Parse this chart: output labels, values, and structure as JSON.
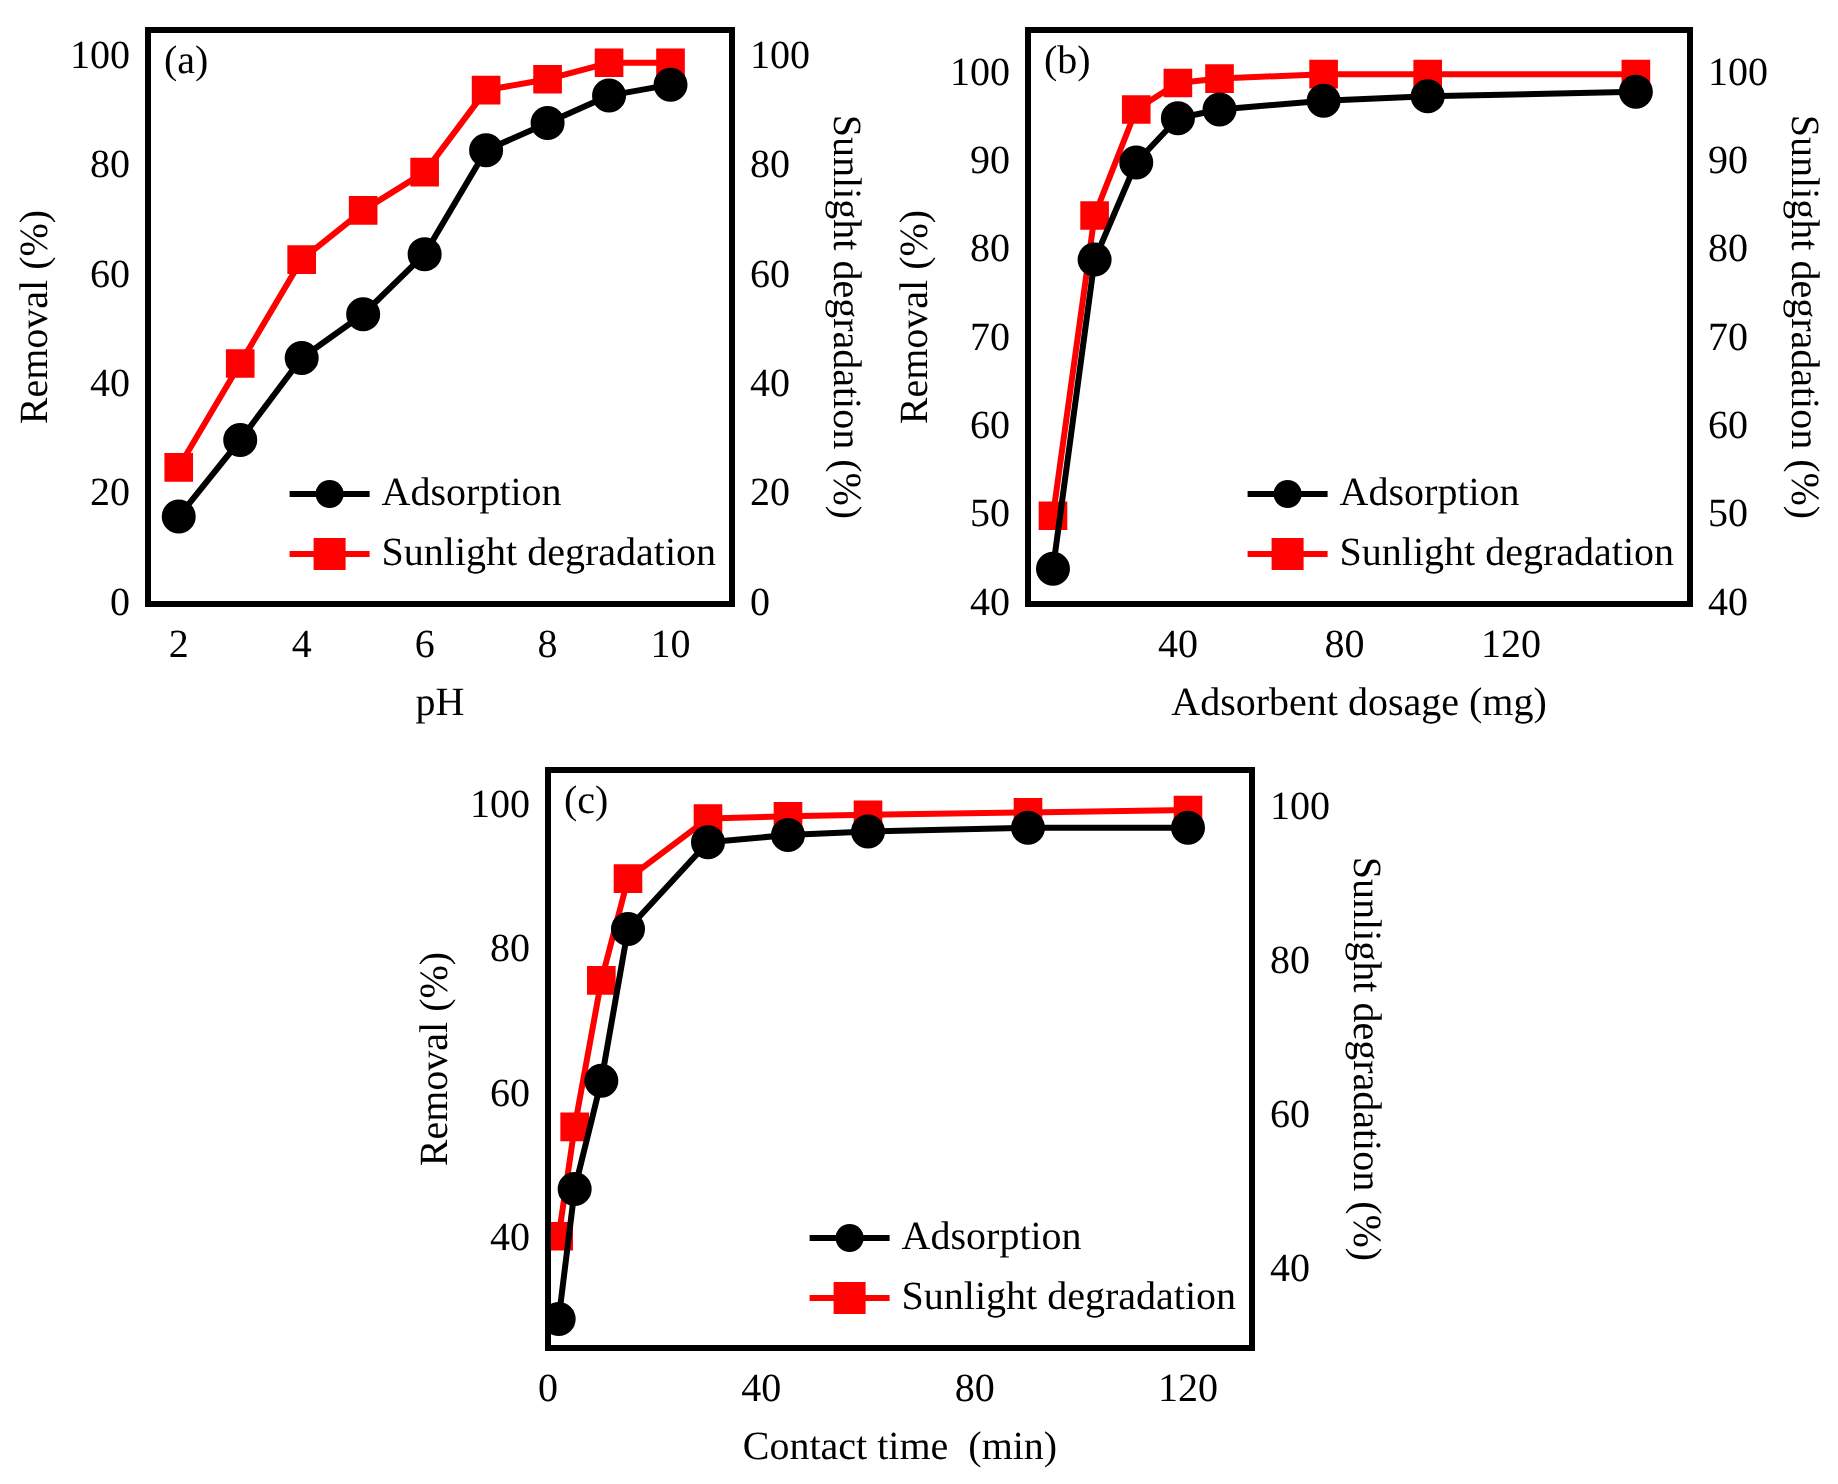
{
  "chart_data": [
    {
      "type": "line",
      "annotations": [
        "(a)"
      ],
      "xlabel": "pH",
      "ylabel": "Removal (%)",
      "y2label": "Sunlight degradation (%)",
      "x": [
        2,
        3,
        4,
        5,
        6,
        7,
        8,
        9,
        10
      ],
      "xlim": [
        1.5,
        11
      ],
      "xticks": [
        2,
        4,
        6,
        8,
        10
      ],
      "ylim": [
        0,
        105
      ],
      "yticks": [
        0,
        20,
        40,
        60,
        80,
        100
      ],
      "y2lim": [
        0,
        105
      ],
      "y2ticks": [
        0,
        20,
        40,
        60,
        80,
        100
      ],
      "legend": "bottom right",
      "grid": false,
      "line_style": "solid",
      "series": [
        {
          "name": "Adsorption",
          "color": "#000000",
          "marker": "circle",
          "values": [
            16,
            30,
            45,
            53,
            64,
            83,
            88,
            93,
            95
          ]
        },
        {
          "name": "Sunlight degradation",
          "color": "#ff0000",
          "marker": "square",
          "axis": "y2",
          "values": [
            25,
            44,
            63,
            72,
            79,
            94,
            96,
            99,
            99
          ]
        }
      ]
    },
    {
      "type": "line",
      "annotations": [
        "(b)"
      ],
      "xlabel": "Adsorbent dosage (mg)",
      "ylabel": "Removal (%)",
      "y2label": "Sunlight degradation (%)",
      "x": [
        10,
        20,
        30,
        40,
        50,
        75,
        100,
        150
      ],
      "xlim": [
        4,
        163
      ],
      "xticks": [
        40,
        80,
        120
      ],
      "ylim": [
        40,
        105
      ],
      "yticks": [
        40,
        50,
        60,
        70,
        80,
        90,
        100
      ],
      "y2lim": [
        40,
        105
      ],
      "y2ticks": [
        40,
        50,
        60,
        70,
        80,
        90,
        100
      ],
      "legend": "bottom right",
      "grid": false,
      "line_style": "solid",
      "series": [
        {
          "name": "Adsorption",
          "color": "#000000",
          "marker": "circle",
          "values": [
            44,
            79,
            90,
            95,
            96,
            97,
            97.5,
            98
          ]
        },
        {
          "name": "Sunlight degradation",
          "color": "#ff0000",
          "marker": "square",
          "axis": "y2",
          "values": [
            50,
            84,
            96,
            99,
            99.5,
            100,
            100,
            100
          ]
        }
      ]
    },
    {
      "type": "line",
      "annotations": [
        "(c)"
      ],
      "xlabel": "Contact time  (min)",
      "ylabel": "Removal (%)",
      "y2label": "Sunlight degradation (%)",
      "x": [
        2,
        5,
        10,
        15,
        30,
        45,
        60,
        90,
        120
      ],
      "xlim": [
        0,
        132
      ],
      "xticks": [
        0,
        40,
        80,
        120
      ],
      "ylim": [
        25,
        105
      ],
      "yticks": [
        40,
        60,
        80,
        100
      ],
      "y2lim": [
        30,
        105
      ],
      "y2ticks": [
        40,
        60,
        80,
        100
      ],
      "legend": "bottom right",
      "grid": false,
      "line_style": "solid",
      "series": [
        {
          "name": "Adsorption",
          "color": "#000000",
          "marker": "circle",
          "values": [
            29,
            47,
            62,
            83,
            95,
            96,
            96.5,
            97,
            97
          ]
        },
        {
          "name": "Sunlight degradation",
          "color": "#ff0000",
          "marker": "square",
          "axis": "y2",
          "values": [
            44.5,
            58.7,
            77.7,
            90.9,
            98.7,
            99,
            99.2,
            99.5,
            99.8
          ]
        }
      ]
    }
  ]
}
